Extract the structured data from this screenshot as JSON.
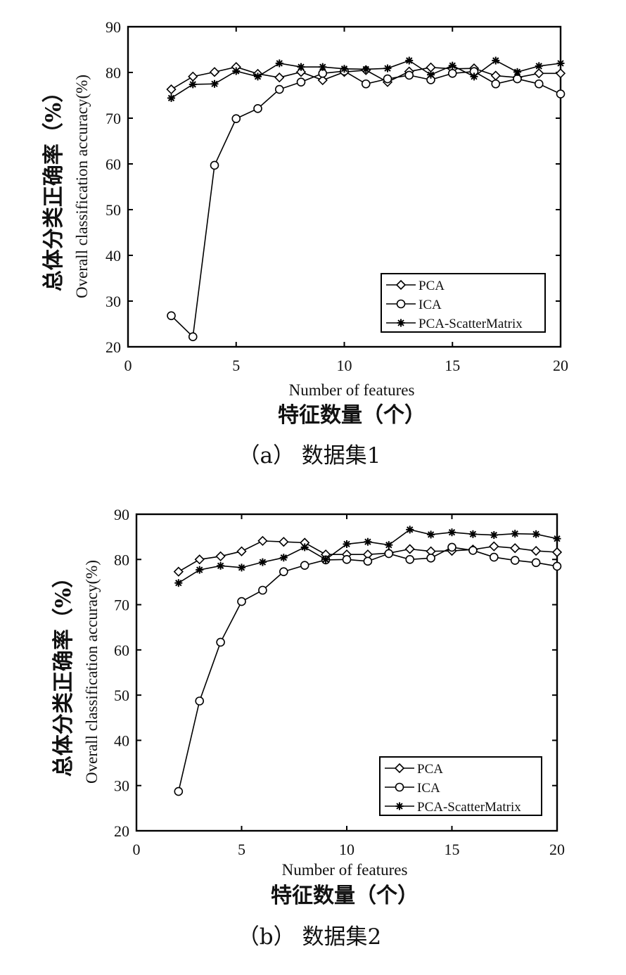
{
  "chart_data": [
    {
      "type": "line",
      "caption": "（a） 数据集1",
      "xlabel": "Number of features",
      "xlabel_cn": "特征数量（个）",
      "ylabel": "Overall classification accuracy(%)",
      "ylabel_cn": "总体分类正确率（%）",
      "xlim": [
        0,
        20
      ],
      "ylim": [
        20,
        90
      ],
      "xticks": [
        0,
        5,
        10,
        15,
        20
      ],
      "yticks": [
        20,
        30,
        40,
        50,
        60,
        70,
        80,
        90
      ],
      "legend_position": "bottom-right",
      "x": [
        2,
        3,
        4,
        5,
        6,
        7,
        8,
        9,
        10,
        11,
        12,
        13,
        14,
        15,
        16,
        17,
        18,
        19,
        20
      ],
      "series": [
        {
          "name": "PCA",
          "marker": "diamond",
          "values": [
            76.3,
            79.1,
            80.1,
            81.2,
            79.7,
            78.9,
            80.1,
            78.3,
            80.1,
            80.5,
            77.9,
            80.2,
            81.1,
            80.8,
            80.9,
            79.3,
            78.9,
            79.8,
            79.8
          ]
        },
        {
          "name": "ICA",
          "marker": "circle",
          "values": [
            26.8,
            22.2,
            59.7,
            69.9,
            72.1,
            76.3,
            77.9,
            79.8,
            80.3,
            77.5,
            78.6,
            79.4,
            78.4,
            79.8,
            80.2,
            77.5,
            78.6,
            77.5,
            75.3
          ]
        },
        {
          "name": "PCA-ScatterMatrix",
          "marker": "star",
          "values": [
            74.4,
            77.4,
            77.5,
            80.3,
            79.1,
            82.0,
            81.2,
            81.2,
            80.8,
            80.7,
            80.9,
            82.6,
            79.5,
            81.5,
            79.1,
            82.6,
            80.1,
            81.4,
            82.0
          ]
        }
      ]
    },
    {
      "type": "line",
      "caption": "（b） 数据集2",
      "xlabel": "Number of features",
      "xlabel_cn": "特征数量（个）",
      "ylabel": "Overall classification accuracy(%)",
      "ylabel_cn": "总体分类正确率（%）",
      "xlim": [
        0,
        20
      ],
      "ylim": [
        20,
        90
      ],
      "xticks": [
        0,
        5,
        10,
        15,
        20
      ],
      "yticks": [
        20,
        30,
        40,
        50,
        60,
        70,
        80,
        90
      ],
      "legend_position": "bottom-right",
      "x": [
        2,
        3,
        4,
        5,
        6,
        7,
        8,
        9,
        10,
        11,
        12,
        13,
        14,
        15,
        16,
        17,
        18,
        19,
        20
      ],
      "series": [
        {
          "name": "PCA",
          "marker": "diamond",
          "values": [
            77.3,
            80.0,
            80.7,
            81.8,
            84.1,
            83.9,
            83.7,
            81.1,
            81.1,
            81.1,
            81.4,
            82.3,
            81.8,
            81.9,
            82.2,
            82.9,
            82.5,
            81.9,
            81.6
          ]
        },
        {
          "name": "ICA",
          "marker": "circle",
          "values": [
            28.7,
            48.7,
            61.7,
            70.7,
            73.2,
            77.3,
            78.7,
            79.9,
            80.0,
            79.6,
            81.3,
            80.0,
            80.3,
            82.7,
            82.0,
            80.5,
            79.8,
            79.3,
            78.5
          ]
        },
        {
          "name": "PCA-ScatterMatrix",
          "marker": "star",
          "values": [
            74.8,
            77.7,
            78.6,
            78.2,
            79.4,
            80.4,
            82.7,
            80.0,
            83.4,
            83.9,
            83.2,
            86.6,
            85.5,
            86.0,
            85.6,
            85.4,
            85.7,
            85.6,
            84.6
          ]
        }
      ]
    }
  ]
}
